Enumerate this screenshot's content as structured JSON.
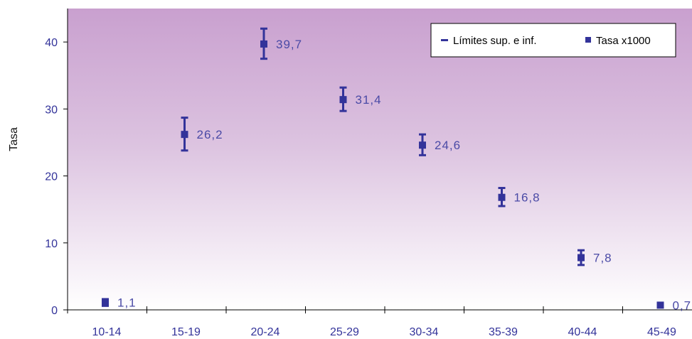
{
  "chart_data": {
    "type": "scatter",
    "title": "",
    "xlabel": "",
    "ylabel": "Tasa",
    "categories": [
      "10-14",
      "15-19",
      "20-24",
      "25-29",
      "30-34",
      "35-39",
      "40-44",
      "45-49"
    ],
    "ylim": [
      0,
      45
    ],
    "yticks": [
      "0",
      "10",
      "20",
      "30",
      "40"
    ],
    "grid": false,
    "legend_position": "top-right",
    "series": [
      {
        "name": "Tasa x1000",
        "values": [
          1.1,
          26.2,
          39.7,
          31.4,
          24.6,
          16.8,
          7.8,
          0.7
        ],
        "labels": [
          "1,1",
          "26,2",
          "39,7",
          "31,4",
          "24,6",
          "16,8",
          "7,8",
          "0,7"
        ]
      },
      {
        "name": "Límites sup. e inf.",
        "upper": [
          1.6,
          28.7,
          42.0,
          33.2,
          26.2,
          18.2,
          8.9,
          0.9
        ],
        "lower": [
          0.6,
          23.8,
          37.5,
          29.7,
          23.1,
          15.5,
          6.7,
          0.5
        ]
      }
    ],
    "colors": {
      "marker": "#33339a",
      "text": "#33339a",
      "plot_top": "#c9a0cf",
      "plot_bottom": "#ffffff"
    }
  }
}
